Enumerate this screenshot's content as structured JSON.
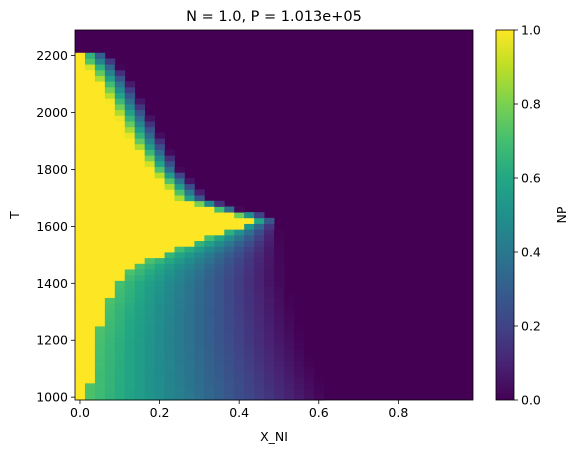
{
  "chart_data": {
    "type": "heatmap",
    "title": "N = 1.0, P = 1.013e+05",
    "xlabel": "X_NI",
    "ylabel": "T",
    "xlim": [
      -0.0125,
      0.9875
    ],
    "ylim": [
      990,
      2290
    ],
    "xticks": [
      0.0,
      0.2,
      0.4,
      0.6,
      0.8
    ],
    "xtick_labels": [
      "0.0",
      "0.2",
      "0.4",
      "0.6",
      "0.8"
    ],
    "yticks": [
      1000,
      1200,
      1400,
      1600,
      1800,
      2000,
      2200
    ],
    "ytick_labels": [
      "1000",
      "1200",
      "1400",
      "1600",
      "1800",
      "2000",
      "2200"
    ],
    "grid": {
      "x_min": 0.0,
      "x_step": 0.025,
      "x_count": 40,
      "y_min": 1000,
      "y_step": 20,
      "y_count": 65
    },
    "colormap": "viridis",
    "vmin": 0.0,
    "vmax": 1.0,
    "colorbar": {
      "label": "NP",
      "ticks": [
        0.0,
        0.2,
        0.4,
        0.6,
        0.8,
        1.0
      ],
      "tick_labels": [
        "0.0",
        "0.2",
        "0.4",
        "0.6",
        "0.8",
        "1.0"
      ]
    },
    "field": {
      "description_of_regions": [
        "liquid-only (NP=1) at low X_NI",
        "two-phase (0<NP<1) between",
        "zero elsewhere"
      ],
      "low_T_boundary": [
        {
          "T": 1000,
          "x": 0.625
        },
        {
          "T": 1100,
          "x": 0.59
        },
        {
          "T": 1200,
          "x": 0.56
        },
        {
          "T": 1300,
          "x": 0.54
        },
        {
          "T": 1400,
          "x": 0.52
        },
        {
          "T": 1500,
          "x": 0.51
        },
        {
          "T": 1600,
          "x": 0.5
        }
      ],
      "high_T_boundary": [
        {
          "T": 1620,
          "x": 0.49
        },
        {
          "T": 1650,
          "x": 0.35
        },
        {
          "T": 1700,
          "x": 0.25
        },
        {
          "T": 1800,
          "x": 0.18
        },
        {
          "T": 1900,
          "x": 0.14
        },
        {
          "T": 2000,
          "x": 0.1
        },
        {
          "T": 2100,
          "x": 0.06
        },
        {
          "T": 2180,
          "x": 0.02
        },
        {
          "T": 2200,
          "x": 0.0
        }
      ],
      "solidus_low_T": [
        {
          "T": 1000,
          "x": 0.02
        },
        {
          "T": 1200,
          "x": 0.04
        },
        {
          "T": 1300,
          "x": 0.06
        },
        {
          "T": 1400,
          "x": 0.09
        },
        {
          "T": 1450,
          "x": 0.13
        },
        {
          "T": 1500,
          "x": 0.2
        },
        {
          "T": 1550,
          "x": 0.3
        },
        {
          "T": 1600,
          "x": 0.4
        },
        {
          "T": 1620,
          "x": 0.44
        }
      ],
      "liquidus_high_T": [
        {
          "T": 1620,
          "x": 0.44
        },
        {
          "T": 1650,
          "x": 0.35
        },
        {
          "T": 1700,
          "x": 0.24
        },
        {
          "T": 1800,
          "x": 0.18
        },
        {
          "T": 1900,
          "x": 0.13
        },
        {
          "T": 2000,
          "x": 0.09
        },
        {
          "T": 2100,
          "x": 0.05
        },
        {
          "T": 2160,
          "x": 0.02
        },
        {
          "T": 2180,
          "x": 0.0
        }
      ]
    }
  }
}
